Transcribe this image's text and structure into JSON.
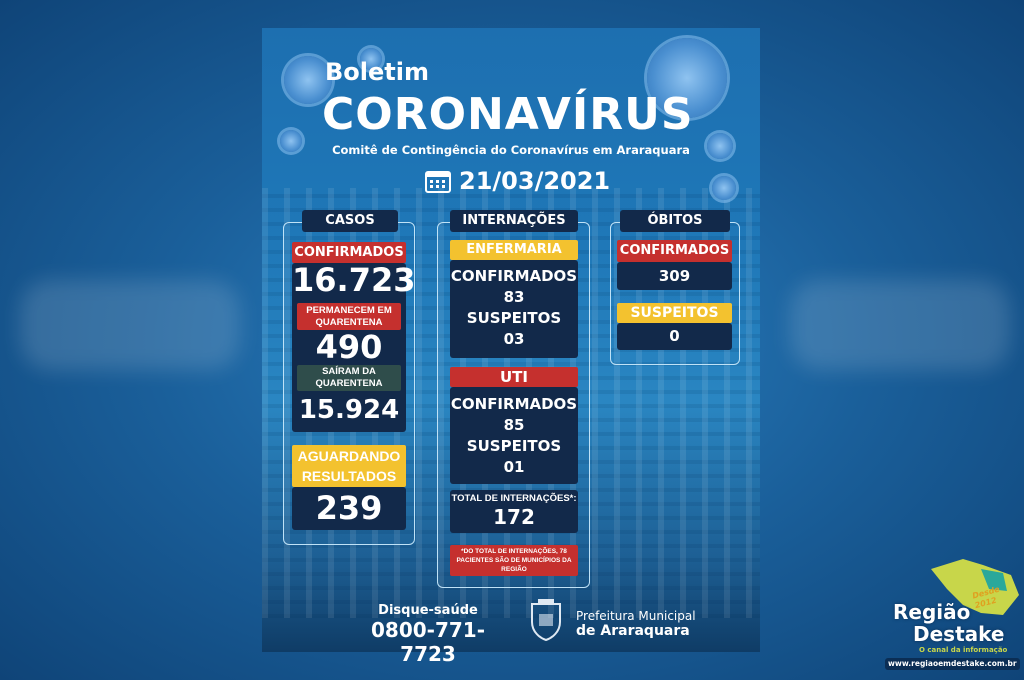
{
  "header": {
    "kicker": "Boletim",
    "title": "CORONAVÍRUS",
    "subtitle": "Comitê de Contingência do Coronavírus em Araraquara",
    "date": "21/03/2021"
  },
  "casos": {
    "title": "CASOS",
    "confirmados_label": "CONFIRMADOS",
    "confirmados": "16.723",
    "quarentena_label": "PERMANECEM EM QUARENTENA",
    "quarentena": "490",
    "sairam_label": "SAÍRAM DA QUARENTENA",
    "sairam": "15.924",
    "aguardando_label": "AGUARDANDO RESULTADOS",
    "aguardando": "239"
  },
  "internacoes": {
    "title": "INTERNAÇÕES",
    "enfermaria": {
      "label": "ENFERMARIA",
      "confirmados_label": "CONFIRMADOS",
      "confirmados": "83",
      "suspeitos_label": "SUSPEITOS",
      "suspeitos": "03"
    },
    "uti": {
      "label": "UTI",
      "confirmados_label": "CONFIRMADOS",
      "confirmados": "85",
      "suspeitos_label": "SUSPEITOS",
      "suspeitos": "01"
    },
    "total_label": "TOTAL DE INTERNAÇÕES*:",
    "total": "172",
    "note": "*DO TOTAL DE INTERNAÇÕES, 78 PACIENTES SÃO DE MUNICÍPIOS DA REGIÃO"
  },
  "obitos": {
    "title": "ÓBITOS",
    "confirmados_label": "CONFIRMADOS",
    "confirmados": "309",
    "suspeitos_label": "SUSPEITOS",
    "suspeitos": "0"
  },
  "footer": {
    "disque_label": "Disque-saúde",
    "phone": "0800-771-7723",
    "pref_line1": "Prefeitura Municipal",
    "pref_line2": "de Araraquara"
  },
  "watermark": {
    "line1": "Região",
    "line2": "Destake",
    "tagline": "O canal da informação",
    "since": "Desde 2012",
    "url": "www.regiaoemdestake.com.br"
  },
  "colors": {
    "red": "#c5302e",
    "yellow": "#f3c22f",
    "navy": "#12294a",
    "green": "#2f4d4b"
  }
}
